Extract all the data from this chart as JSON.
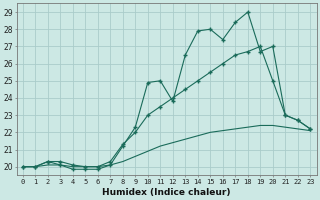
{
  "xlabel": "Humidex (Indice chaleur)",
  "bg_color": "#cce8e4",
  "grid_color": "#aaccca",
  "line_color": "#1a6b5a",
  "xlim": [
    -0.5,
    23.5
  ],
  "ylim": [
    19.5,
    29.5
  ],
  "yticks": [
    20,
    21,
    22,
    23,
    24,
    25,
    26,
    27,
    28,
    29
  ],
  "xticks": [
    0,
    1,
    2,
    3,
    4,
    5,
    6,
    7,
    8,
    9,
    10,
    11,
    12,
    13,
    14,
    15,
    16,
    17,
    18,
    19,
    20,
    21,
    22,
    23
  ],
  "series1_x": [
    0,
    1,
    2,
    3,
    4,
    5,
    6,
    7,
    8,
    9,
    10,
    11,
    12,
    13,
    14,
    15,
    16,
    17,
    18,
    19,
    20,
    21,
    22,
    23
  ],
  "series1_y": [
    20.0,
    20.0,
    20.3,
    20.1,
    19.85,
    19.85,
    19.85,
    20.1,
    21.2,
    22.3,
    24.9,
    25.0,
    23.8,
    26.5,
    27.9,
    28.0,
    27.4,
    28.4,
    29.0,
    26.7,
    27.0,
    23.0,
    22.7,
    22.2
  ],
  "series2_x": [
    0,
    1,
    2,
    3,
    4,
    5,
    6,
    7,
    8,
    9,
    10,
    11,
    12,
    13,
    14,
    15,
    16,
    17,
    18,
    19,
    20,
    21,
    22,
    23
  ],
  "series2_y": [
    20.0,
    20.0,
    20.3,
    20.3,
    20.1,
    20.0,
    20.0,
    20.3,
    21.3,
    22.0,
    23.0,
    23.5,
    24.0,
    24.5,
    25.0,
    25.5,
    26.0,
    26.5,
    26.7,
    27.0,
    25.0,
    23.0,
    22.7,
    22.2
  ],
  "series3_x": [
    0,
    1,
    2,
    3,
    4,
    5,
    6,
    7,
    8,
    9,
    10,
    11,
    12,
    13,
    14,
    15,
    16,
    17,
    18,
    19,
    20,
    21,
    22,
    23
  ],
  "series3_y": [
    20.0,
    20.0,
    20.1,
    20.1,
    20.0,
    20.0,
    20.0,
    20.1,
    20.3,
    20.6,
    20.9,
    21.2,
    21.4,
    21.6,
    21.8,
    22.0,
    22.1,
    22.2,
    22.3,
    22.4,
    22.4,
    22.3,
    22.2,
    22.1
  ]
}
